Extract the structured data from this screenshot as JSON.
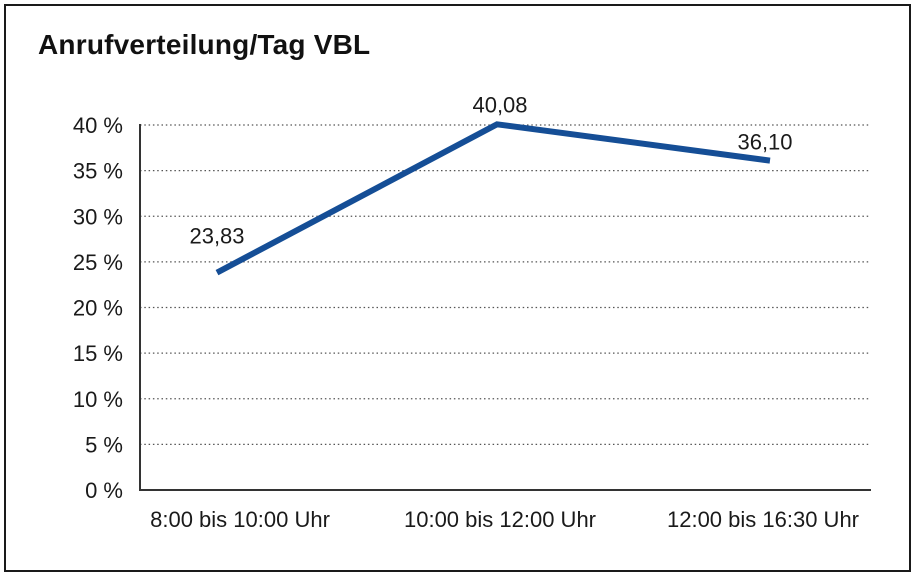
{
  "frame": {
    "background": "#ffffff",
    "border_color": "#1a1a1a"
  },
  "chart_data": {
    "type": "line",
    "title": "Anrufverteilung/Tag VBL",
    "categories": [
      "8:00 bis 10:00 Uhr",
      "10:00 bis 12:00 Uhr",
      "12:00 bis 16:30 Uhr"
    ],
    "values": [
      23.83,
      40.08,
      36.1
    ],
    "value_labels": [
      "23,83",
      "40,08",
      "36,10"
    ],
    "xlabel": "",
    "ylabel": "",
    "ylim": [
      0,
      40
    ],
    "ytick_step": 5,
    "ytick_labels": [
      "0 %",
      "5 %",
      "10 %",
      "15 %",
      "20 %",
      "25 %",
      "30 %",
      "35 %",
      "40 %"
    ],
    "grid": "horizontal-dotted",
    "legend": "none",
    "line_color": "#154E96",
    "grid_color": "#555555",
    "axis_color": "#333333",
    "text_color": "#1a1a1a"
  }
}
